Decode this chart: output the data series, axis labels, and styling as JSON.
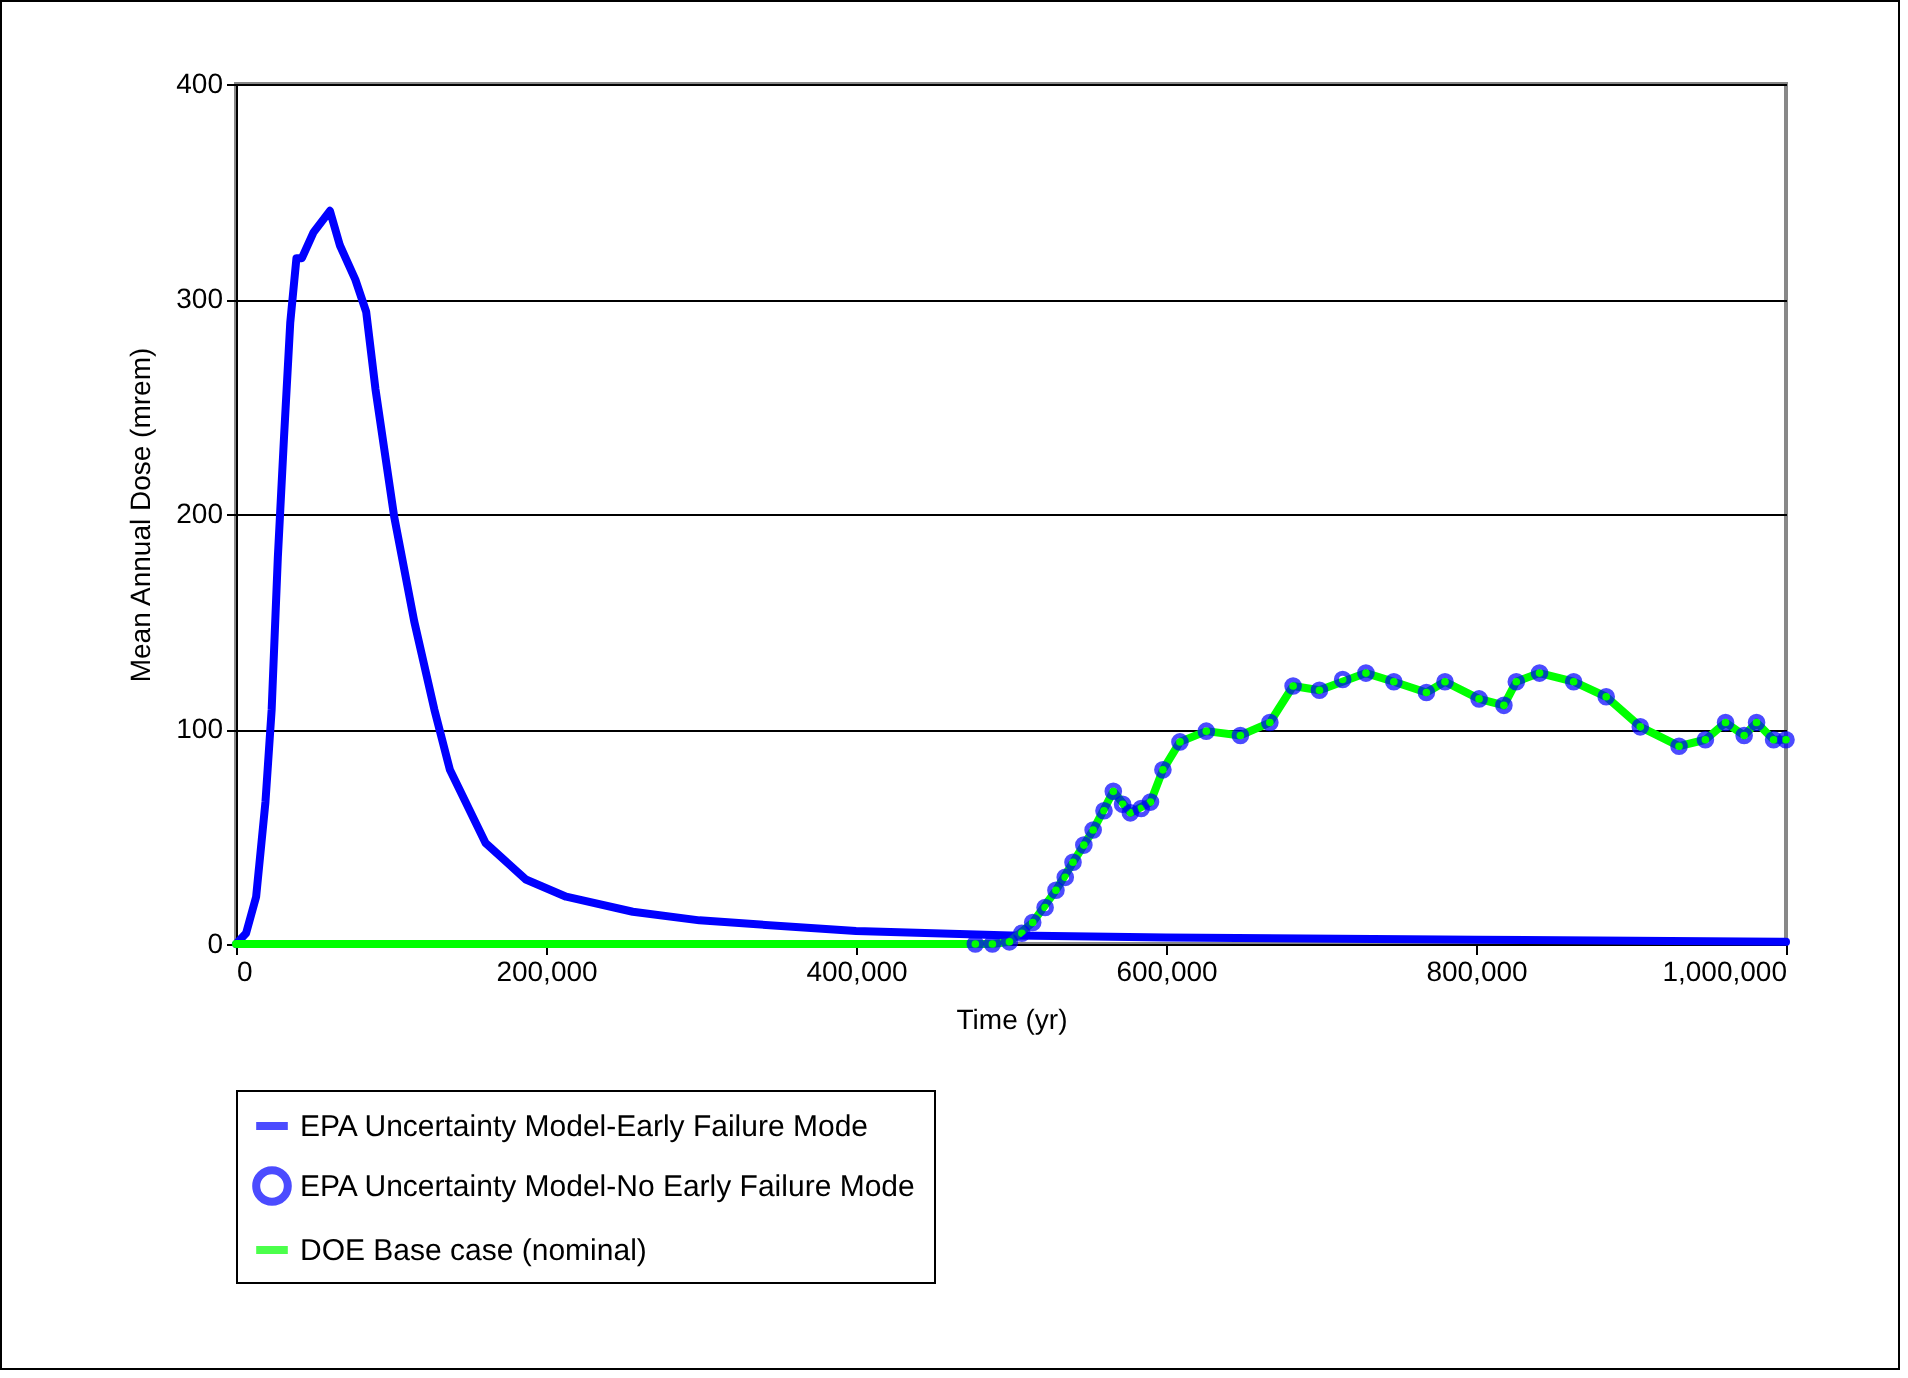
{
  "chart_data": {
    "type": "line",
    "xlabel": "Time (yr)",
    "ylabel": "Mean Annual Dose (mrem)",
    "xlim": [
      0,
      1000000
    ],
    "xticks": [
      0,
      {
        "value": 200000,
        "label": "200,000"
      },
      {
        "value": 400000,
        "label": "400,000"
      },
      {
        "value": 600000,
        "label": "600,000"
      },
      {
        "value": 800000,
        "label": "800,000"
      },
      {
        "value": 1000000,
        "label": "1,000,000"
      }
    ],
    "ylim": [
      0,
      400
    ],
    "yticks": [
      0,
      100,
      200,
      300,
      400
    ],
    "grid": "y",
    "legend": "bottom",
    "series": [
      {
        "name": "EPA Uncertainty Model-Early Failure Mode",
        "color": "#0000ff",
        "type": "line",
        "marker": "none",
        "x": [
          0,
          6500,
          13000,
          19000,
          23000,
          27000,
          31000,
          35000,
          39000,
          42500,
          50000,
          60600,
          67000,
          77000,
          84000,
          90000,
          102000,
          115000,
          128000,
          138000,
          161000,
          187000,
          213000,
          256000,
          299000,
          400000,
          500000,
          600000,
          800000,
          1000000
        ],
        "values": [
          0,
          5,
          22,
          66,
          109,
          180,
          236,
          289,
          319,
          319,
          331,
          341,
          325,
          309,
          294,
          258,
          199,
          150,
          109,
          81,
          47,
          30,
          22,
          15,
          11,
          6,
          4,
          3,
          2,
          1
        ]
      },
      {
        "name": "EPA Uncertainty Model-No Early Failure Mode",
        "color": "#0000ff",
        "type": "scatter",
        "marker": "circle",
        "x": [
          477000,
          488000,
          499000,
          507000,
          514000,
          522000,
          529000,
          535000,
          540000,
          547000,
          553000,
          560000,
          566000,
          572000,
          577000,
          584000,
          590000,
          598000,
          609000,
          626000,
          648000,
          667000,
          682000,
          699000,
          714000,
          729000,
          747000,
          768000,
          780000,
          802000,
          818000,
          826000,
          841000,
          863000,
          884000,
          906000,
          931000,
          948000,
          961000,
          973000,
          981000,
          992000,
          1000000
        ],
        "values": [
          0,
          0,
          1,
          5,
          10,
          17,
          25,
          31,
          38,
          46,
          53,
          62,
          71,
          65,
          61,
          63,
          66,
          81,
          94,
          99,
          97,
          103,
          120,
          118,
          123,
          126,
          122,
          117,
          122,
          114,
          111,
          122,
          126,
          122,
          115,
          101,
          92,
          95,
          103,
          97,
          103,
          95,
          95
        ]
      },
      {
        "name": "DOE Base case (nominal)",
        "color": "#00ff00",
        "type": "line",
        "marker": "none",
        "x": [
          0,
          477000,
          488000,
          499000,
          514000,
          529000,
          540000,
          553000,
          566000,
          577000,
          590000,
          598000,
          609000,
          626000,
          648000,
          667000,
          682000,
          699000,
          729000,
          747000,
          768000,
          780000,
          802000,
          818000,
          826000,
          841000,
          863000,
          884000,
          906000,
          931000,
          948000,
          961000,
          973000,
          981000,
          992000,
          1000000
        ],
        "values": [
          0,
          0,
          0,
          1,
          10,
          25,
          38,
          53,
          71,
          61,
          66,
          81,
          94,
          99,
          97,
          103,
          120,
          118,
          126,
          122,
          117,
          122,
          114,
          111,
          122,
          126,
          122,
          115,
          101,
          92,
          95,
          103,
          97,
          103,
          95,
          95
        ]
      }
    ]
  }
}
